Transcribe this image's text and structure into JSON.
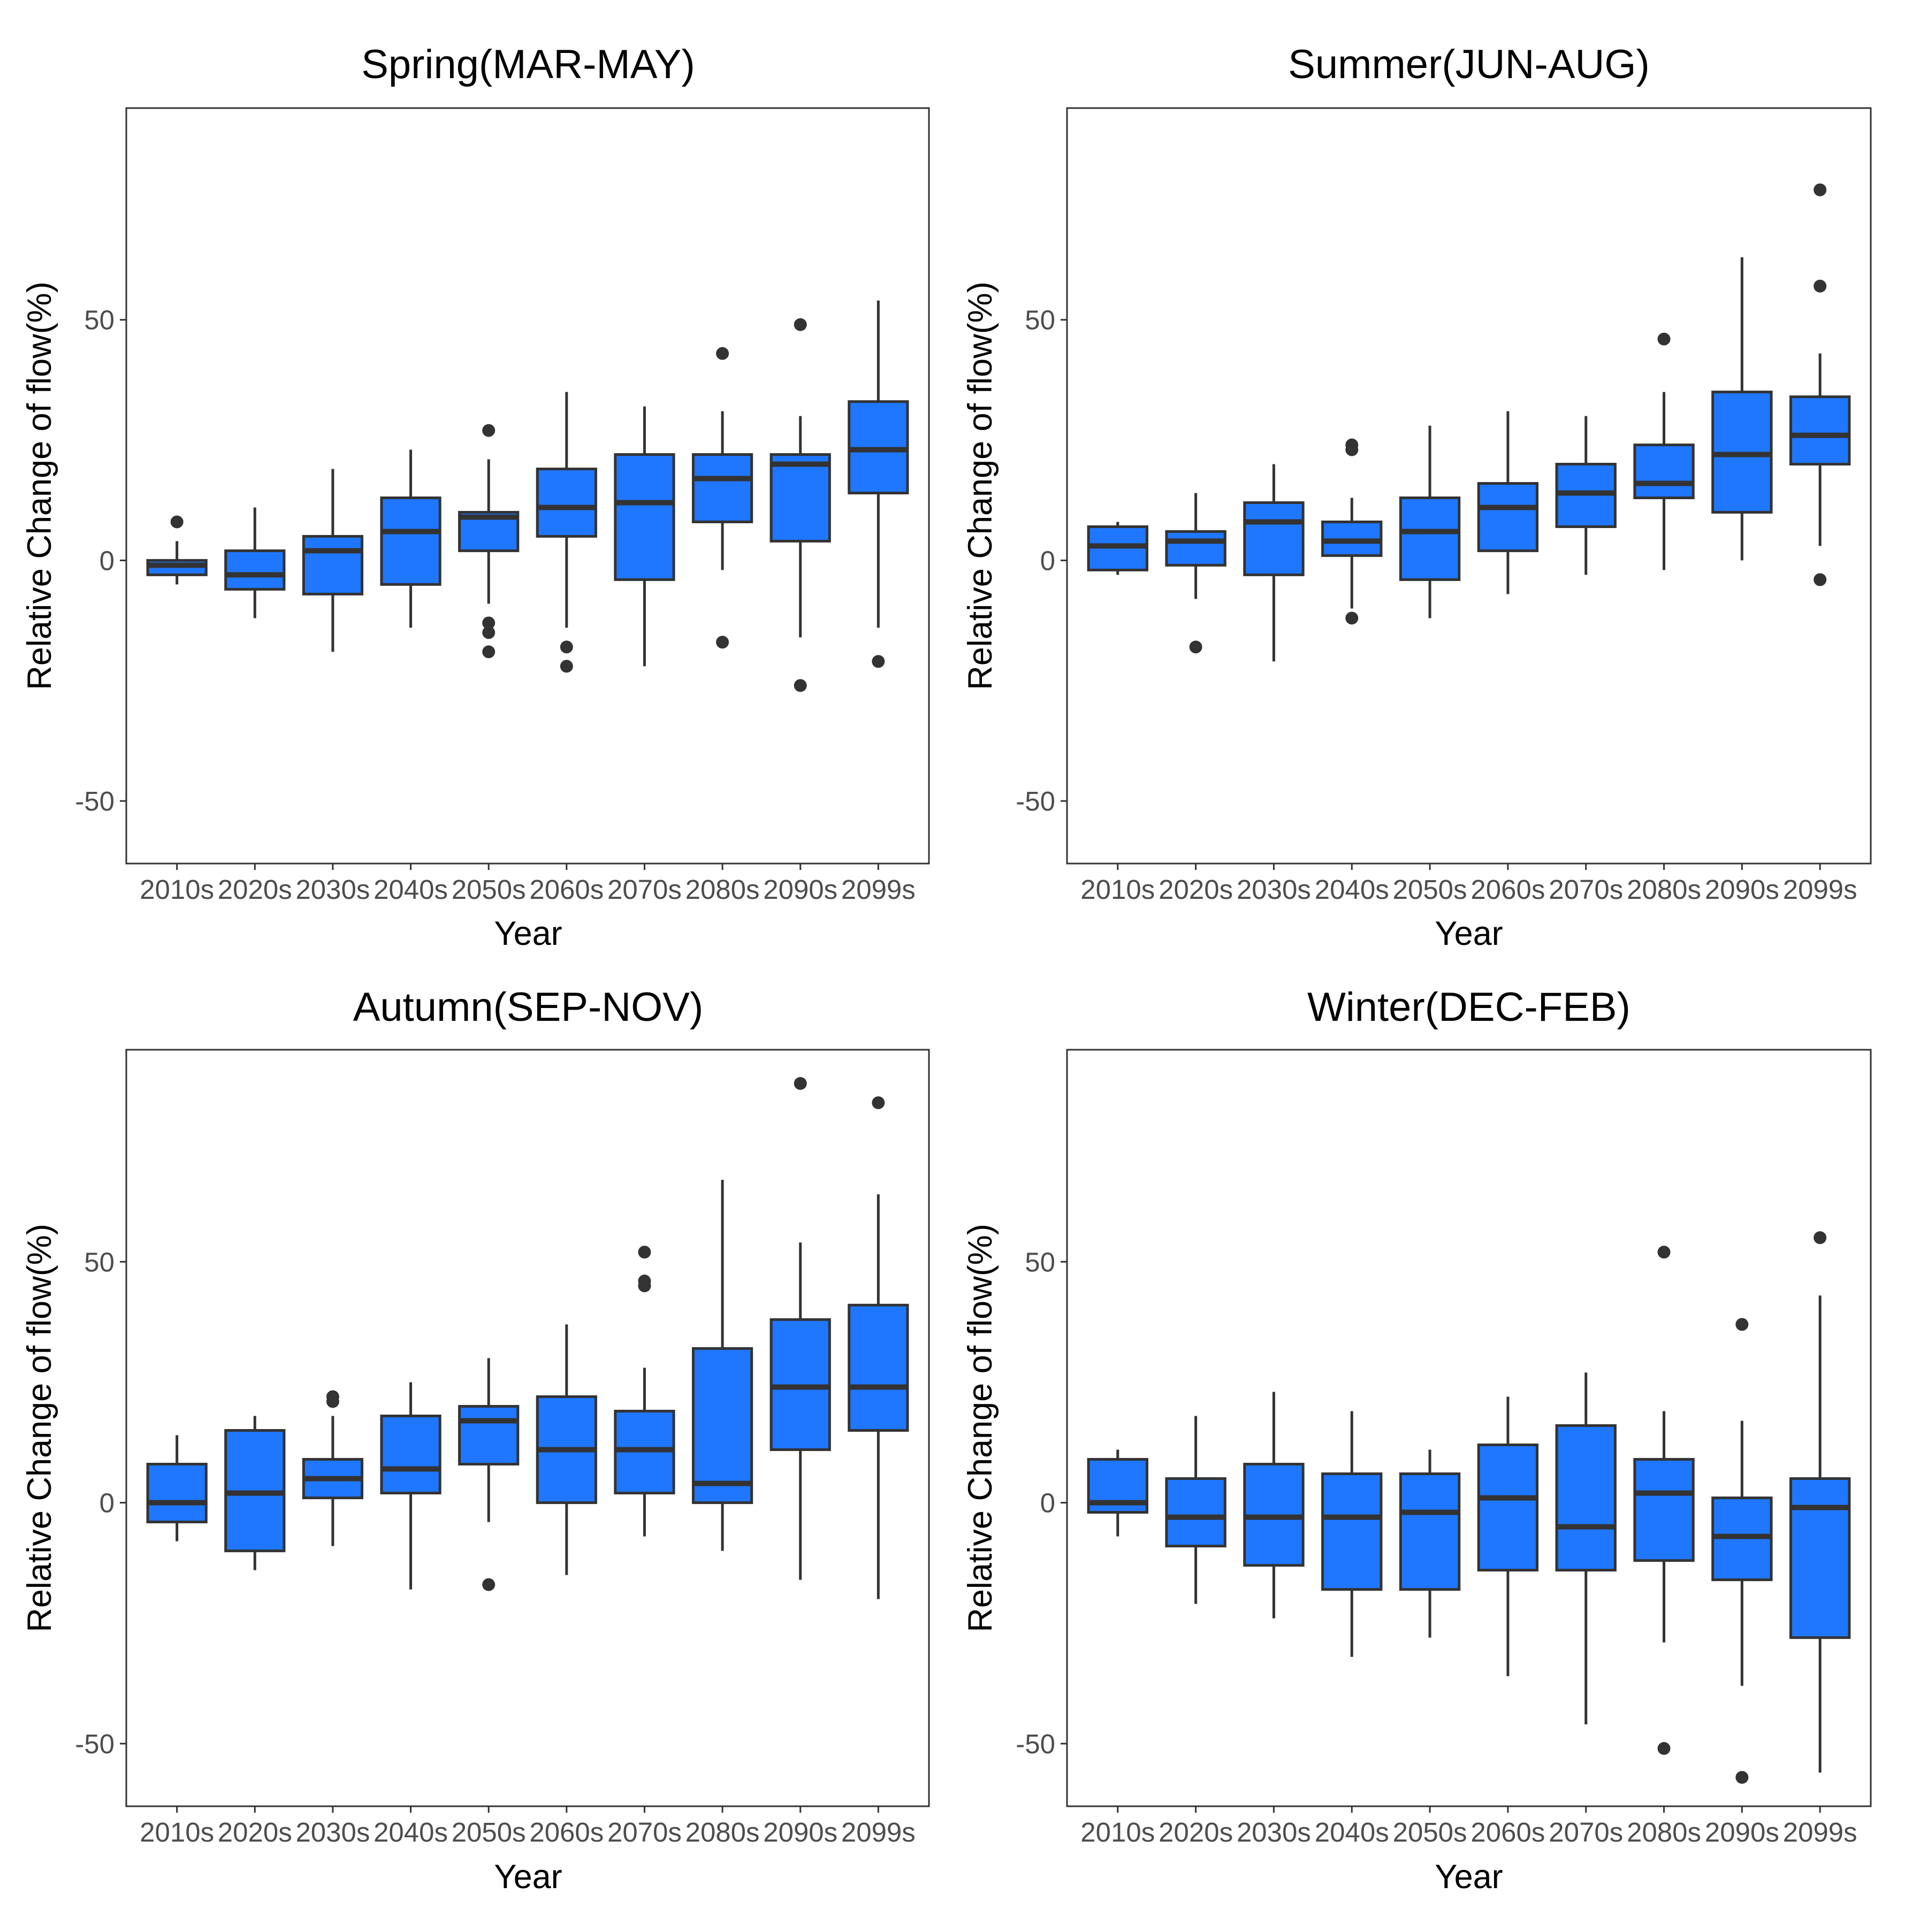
{
  "colors": {
    "box_fill": "#1f77ff",
    "line": "#333333",
    "outlier": "#333333",
    "panel_border": "#333333"
  },
  "chart_data": [
    {
      "type": "box",
      "title": "Spring(MAR-MAY)",
      "xlabel": "Year",
      "ylabel": "Relative Change of flow(%)",
      "ylim": [
        -63,
        94
      ],
      "yticks": [
        -50,
        0,
        50
      ],
      "ytick_labels": [
        "-50",
        "0",
        "50"
      ],
      "categories": [
        "2010s",
        "2020s",
        "2030s",
        "2040s",
        "2050s",
        "2060s",
        "2070s",
        "2080s",
        "2090s",
        "2099s"
      ],
      "boxes": [
        {
          "q1": -3,
          "median": -1,
          "q3": 0,
          "wmin": -5,
          "wmax": 4,
          "outliers": [
            8
          ]
        },
        {
          "q1": -6,
          "median": -3,
          "q3": 2,
          "wmin": -12,
          "wmax": 11,
          "outliers": []
        },
        {
          "q1": -7,
          "median": 2,
          "q3": 5,
          "wmin": -19,
          "wmax": 19,
          "outliers": []
        },
        {
          "q1": -5,
          "median": 6,
          "q3": 13,
          "wmin": -14,
          "wmax": 23,
          "outliers": []
        },
        {
          "q1": 2,
          "median": 9,
          "q3": 10,
          "wmin": -9,
          "wmax": 21,
          "outliers": [
            27,
            -13,
            -15,
            -19
          ]
        },
        {
          "q1": 5,
          "median": 11,
          "q3": 19,
          "wmin": -14,
          "wmax": 35,
          "outliers": [
            -18,
            -22
          ]
        },
        {
          "q1": -4,
          "median": 12,
          "q3": 22,
          "wmin": -22,
          "wmax": 32,
          "outliers": []
        },
        {
          "q1": 8,
          "median": 17,
          "q3": 22,
          "wmin": -2,
          "wmax": 31,
          "outliers": [
            43,
            -17
          ]
        },
        {
          "q1": 4,
          "median": 20,
          "q3": 22,
          "wmin": -16,
          "wmax": 30,
          "outliers": [
            49,
            -26
          ]
        },
        {
          "q1": 14,
          "median": 23,
          "q3": 33,
          "wmin": -14,
          "wmax": 54,
          "outliers": [
            -21
          ]
        }
      ]
    },
    {
      "type": "box",
      "title": "Summer(JUN-AUG)",
      "xlabel": "Year",
      "ylabel": "Relative Change of flow(%)",
      "ylim": [
        -63,
        94
      ],
      "yticks": [
        -50,
        0,
        50
      ],
      "ytick_labels": [
        "-50",
        "0",
        "50"
      ],
      "categories": [
        "2010s",
        "2020s",
        "2030s",
        "2040s",
        "2050s",
        "2060s",
        "2070s",
        "2080s",
        "2090s",
        "2099s"
      ],
      "boxes": [
        {
          "q1": -2,
          "median": 3,
          "q3": 7,
          "wmin": -3,
          "wmax": 8,
          "outliers": []
        },
        {
          "q1": -1,
          "median": 4,
          "q3": 6,
          "wmin": -8,
          "wmax": 14,
          "outliers": [
            -18
          ]
        },
        {
          "q1": -3,
          "median": 8,
          "q3": 12,
          "wmin": -21,
          "wmax": 20,
          "outliers": []
        },
        {
          "q1": 1,
          "median": 4,
          "q3": 8,
          "wmin": -10,
          "wmax": 13,
          "outliers": [
            24,
            23,
            -12
          ]
        },
        {
          "q1": -4,
          "median": 6,
          "q3": 13,
          "wmin": -12,
          "wmax": 28,
          "outliers": []
        },
        {
          "q1": 2,
          "median": 11,
          "q3": 16,
          "wmin": -7,
          "wmax": 31,
          "outliers": []
        },
        {
          "q1": 7,
          "median": 14,
          "q3": 20,
          "wmin": -3,
          "wmax": 30,
          "outliers": []
        },
        {
          "q1": 13,
          "median": 16,
          "q3": 24,
          "wmin": -2,
          "wmax": 35,
          "outliers": [
            46
          ]
        },
        {
          "q1": 10,
          "median": 22,
          "q3": 35,
          "wmin": 0,
          "wmax": 63,
          "outliers": []
        },
        {
          "q1": 20,
          "median": 26,
          "q3": 34,
          "wmin": 3,
          "wmax": 43,
          "outliers": [
            77,
            57,
            -4
          ]
        }
      ]
    },
    {
      "type": "box",
      "title": "Autumn(SEP-NOV)",
      "xlabel": "Year",
      "ylabel": "Relative Change of flow(%)",
      "ylim": [
        -63,
        94
      ],
      "yticks": [
        -50,
        0,
        50
      ],
      "ytick_labels": [
        "-50",
        "0",
        "50"
      ],
      "categories": [
        "2010s",
        "2020s",
        "2030s",
        "2040s",
        "2050s",
        "2060s",
        "2070s",
        "2080s",
        "2090s",
        "2099s"
      ],
      "boxes": [
        {
          "q1": -4,
          "median": 0,
          "q3": 8,
          "wmin": -8,
          "wmax": 14,
          "outliers": []
        },
        {
          "q1": -10,
          "median": 2,
          "q3": 15,
          "wmin": -14,
          "wmax": 18,
          "outliers": []
        },
        {
          "q1": 1,
          "median": 5,
          "q3": 9,
          "wmin": -9,
          "wmax": 18,
          "outliers": [
            22,
            21
          ]
        },
        {
          "q1": 2,
          "median": 7,
          "q3": 18,
          "wmin": -18,
          "wmax": 25,
          "outliers": []
        },
        {
          "q1": 8,
          "median": 17,
          "q3": 20,
          "wmin": -4,
          "wmax": 30,
          "outliers": [
            -17
          ]
        },
        {
          "q1": 0,
          "median": 11,
          "q3": 22,
          "wmin": -15,
          "wmax": 37,
          "outliers": []
        },
        {
          "q1": 2,
          "median": 11,
          "q3": 19,
          "wmin": -7,
          "wmax": 28,
          "outliers": [
            52,
            46,
            45
          ]
        },
        {
          "q1": 0,
          "median": 4,
          "q3": 32,
          "wmin": -10,
          "wmax": 67,
          "outliers": []
        },
        {
          "q1": 11,
          "median": 24,
          "q3": 38,
          "wmin": -16,
          "wmax": 54,
          "outliers": [
            87
          ]
        },
        {
          "q1": 15,
          "median": 24,
          "q3": 41,
          "wmin": -20,
          "wmax": 64,
          "outliers": [
            83
          ]
        }
      ]
    },
    {
      "type": "box",
      "title": "Winter(DEC-FEB)",
      "xlabel": "Year",
      "ylabel": "Relative Change of flow(%)",
      "ylim": [
        -63,
        94
      ],
      "yticks": [
        -50,
        0,
        50
      ],
      "ytick_labels": [
        "-50",
        "0",
        "50"
      ],
      "categories": [
        "2010s",
        "2020s",
        "2030s",
        "2040s",
        "2050s",
        "2060s",
        "2070s",
        "2080s",
        "2090s",
        "2099s"
      ],
      "boxes": [
        {
          "q1": -2,
          "median": 0,
          "q3": 9,
          "wmin": -7,
          "wmax": 11,
          "outliers": []
        },
        {
          "q1": -9,
          "median": -3,
          "q3": 5,
          "wmin": -21,
          "wmax": 18,
          "outliers": []
        },
        {
          "q1": -13,
          "median": -3,
          "q3": 8,
          "wmin": -24,
          "wmax": 23,
          "outliers": []
        },
        {
          "q1": -18,
          "median": -3,
          "q3": 6,
          "wmin": -32,
          "wmax": 19,
          "outliers": []
        },
        {
          "q1": -18,
          "median": -2,
          "q3": 6,
          "wmin": -28,
          "wmax": 11,
          "outliers": []
        },
        {
          "q1": -14,
          "median": 1,
          "q3": 12,
          "wmin": -36,
          "wmax": 22,
          "outliers": []
        },
        {
          "q1": -14,
          "median": -5,
          "q3": 16,
          "wmin": -46,
          "wmax": 27,
          "outliers": []
        },
        {
          "q1": -12,
          "median": 2,
          "q3": 9,
          "wmin": -29,
          "wmax": 19,
          "outliers": [
            52,
            -51
          ]
        },
        {
          "q1": -16,
          "median": -7,
          "q3": 1,
          "wmin": -38,
          "wmax": 17,
          "outliers": [
            37,
            -57
          ]
        },
        {
          "q1": -28,
          "median": -1,
          "q3": 5,
          "wmin": -56,
          "wmax": 43,
          "outliers": [
            55
          ]
        }
      ]
    }
  ]
}
